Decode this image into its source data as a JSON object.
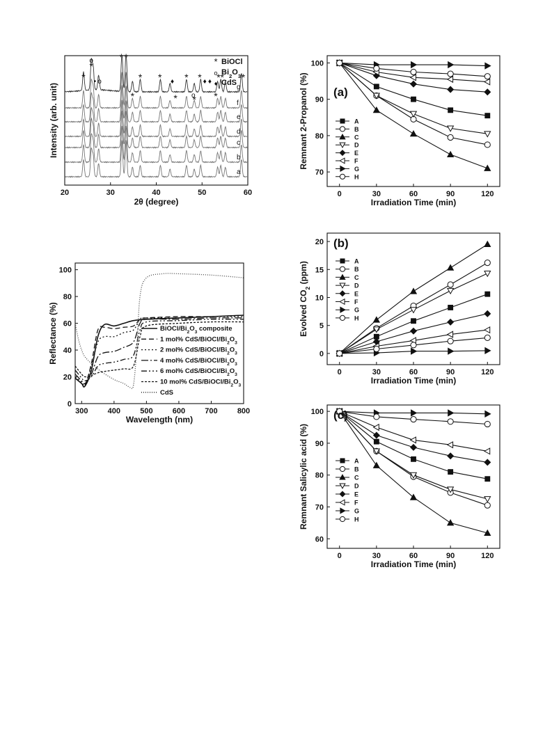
{
  "chart_data": [
    {
      "id": "xrd",
      "type": "line",
      "xlabel": "2θ (degree)",
      "ylabel": "Intensity (arb. unit)",
      "xlim": [
        20,
        60
      ],
      "xticks": [
        20,
        30,
        40,
        50,
        60
      ],
      "grid": false,
      "legend_position": "top-right",
      "legend": [
        {
          "symbol": "*",
          "label": "BiOCl"
        },
        {
          "symbol": "o",
          "label": "Bi2O3"
        },
        {
          "symbol": "♦",
          "label": "CdS"
        }
      ],
      "series": [
        {
          "name": "a"
        },
        {
          "name": "b"
        },
        {
          "name": "c"
        },
        {
          "name": "d"
        },
        {
          "name": "e"
        },
        {
          "name": "f"
        },
        {
          "name": "g"
        }
      ],
      "peaks": [
        {
          "x": 24.1,
          "h": 0.45
        },
        {
          "x": 25.8,
          "h": 0.7
        },
        {
          "x": 26.2,
          "h": 0.55
        },
        {
          "x": 27.4,
          "h": 0.35
        },
        {
          "x": 32.5,
          "h": 0.95
        },
        {
          "x": 33.4,
          "h": 0.95
        },
        {
          "x": 34.8,
          "h": 0.25
        },
        {
          "x": 36.5,
          "h": 0.3
        },
        {
          "x": 40.9,
          "h": 0.3
        },
        {
          "x": 43.0,
          "h": 0.2
        },
        {
          "x": 46.6,
          "h": 0.3
        },
        {
          "x": 48.3,
          "h": 0.2
        },
        {
          "x": 49.7,
          "h": 0.3
        },
        {
          "x": 53.4,
          "h": 0.25
        },
        {
          "x": 54.1,
          "h": 0.3
        },
        {
          "x": 55.1,
          "h": 0.25
        },
        {
          "x": 58.6,
          "h": 0.45
        }
      ],
      "markers": [
        {
          "x": 24.1,
          "s": "*"
        },
        {
          "x": 25.8,
          "s": "o"
        },
        {
          "x": 25.8,
          "s": "*"
        },
        {
          "x": 26.6,
          "s": "•"
        },
        {
          "x": 27.6,
          "s": "o"
        },
        {
          "x": 32.4,
          "s": "*"
        },
        {
          "x": 33.4,
          "s": "*"
        },
        {
          "x": 34.8,
          "s": "*"
        },
        {
          "x": 36.5,
          "s": "*"
        },
        {
          "x": 40.8,
          "s": "*"
        },
        {
          "x": 43.5,
          "s": "♦"
        },
        {
          "x": 44.2,
          "s": "*"
        },
        {
          "x": 46.6,
          "s": "*"
        },
        {
          "x": 48.1,
          "s": "o"
        },
        {
          "x": 48.3,
          "s": "*"
        },
        {
          "x": 49.5,
          "s": "*"
        },
        {
          "x": 50.6,
          "s": "♦"
        },
        {
          "x": 51.7,
          "s": "♦"
        },
        {
          "x": 53.0,
          "s": "*"
        },
        {
          "x": 53.6,
          "s": "*"
        },
        {
          "x": 54.4,
          "s": "*"
        },
        {
          "x": 59.0,
          "s": "*"
        }
      ]
    },
    {
      "id": "reflectance",
      "type": "line",
      "xlabel": "Wavelength (nm)",
      "ylabel": "Reflectance (%)",
      "xlim": [
        280,
        800
      ],
      "ylim": [
        0,
        105
      ],
      "xticks": [
        300,
        400,
        500,
        600,
        700,
        800
      ],
      "yticks": [
        0,
        20,
        40,
        60,
        80,
        100
      ],
      "grid": false,
      "legend_position": "right",
      "series": [
        {
          "name": "BiOCl/Bi2O3 composite",
          "dash": "",
          "x": [
            280,
            300,
            310,
            330,
            350,
            370,
            400,
            430,
            460,
            500,
            600,
            700,
            800
          ],
          "y": [
            19,
            15,
            13,
            25,
            50,
            59,
            58,
            60,
            62,
            63,
            64,
            65,
            66
          ]
        },
        {
          "name": "1 mol% CdS/BiOCl/Bi2O3",
          "dash": "7 4",
          "x": [
            280,
            300,
            310,
            330,
            350,
            370,
            400,
            430,
            460,
            480,
            500,
            600,
            700,
            800
          ],
          "y": [
            19,
            15,
            13,
            30,
            55,
            57,
            56,
            57,
            58,
            63,
            64,
            65,
            65,
            66
          ]
        },
        {
          "name": "2 mol% CdS/BiOCl/Bi2O3",
          "dash": "2 3",
          "x": [
            280,
            300,
            310,
            330,
            350,
            370,
            400,
            430,
            460,
            480,
            500,
            600,
            700,
            800
          ],
          "y": [
            20,
            16,
            14,
            28,
            46,
            50,
            50,
            53,
            55,
            63,
            64,
            64,
            65,
            65
          ]
        },
        {
          "name": "4 mol% CdS/BiOCl/Bi2O3",
          "dash": "10 3 2 3",
          "x": [
            280,
            300,
            310,
            330,
            350,
            370,
            400,
            430,
            460,
            480,
            500,
            600,
            700,
            800
          ],
          "y": [
            22,
            17,
            15,
            22,
            35,
            38,
            39,
            42,
            46,
            60,
            63,
            63,
            64,
            64
          ]
        },
        {
          "name": "6 mol% CdS/BiOCl/Bi2O3",
          "dash": "8 3 2 3 2 3",
          "x": [
            280,
            300,
            310,
            330,
            350,
            370,
            400,
            430,
            460,
            480,
            500,
            600,
            700,
            800
          ],
          "y": [
            25,
            19,
            17,
            20,
            28,
            30,
            31,
            33,
            36,
            55,
            61,
            62,
            63,
            63
          ]
        },
        {
          "name": "10 mol% CdS/BiOCl/Bi2O3",
          "dash": "3 2",
          "x": [
            280,
            300,
            310,
            330,
            350,
            370,
            400,
            430,
            460,
            480,
            500,
            600,
            700,
            800
          ],
          "y": [
            28,
            22,
            20,
            21,
            23,
            24,
            25,
            26,
            28,
            50,
            58,
            60,
            61,
            61
          ]
        },
        {
          "name": "CdS",
          "dash": "1 2",
          "x": [
            280,
            290,
            300,
            310,
            330,
            360,
            400,
            430,
            450,
            460,
            470,
            480,
            500,
            550,
            600,
            700,
            800
          ],
          "y": [
            60,
            48,
            40,
            35,
            30,
            24,
            18,
            15,
            12,
            14,
            40,
            80,
            94,
            97,
            97,
            96,
            94
          ]
        }
      ]
    },
    {
      "id": "a",
      "type": "line",
      "panel_label": "(a)",
      "xlabel": "Irradiation Time (min)",
      "ylabel": "Remnant 2-Propanol (%)",
      "xlim": [
        -10,
        130
      ],
      "ylim": [
        66,
        102
      ],
      "xticks": [
        0,
        30,
        60,
        90,
        120
      ],
      "yticks": [
        70,
        80,
        90,
        100
      ],
      "grid": false,
      "legend_position": "left",
      "x": [
        0,
        30,
        60,
        90,
        120
      ],
      "series": [
        {
          "name": "A",
          "marker": "square",
          "y": [
            100,
            93.5,
            90,
            87,
            85.5
          ]
        },
        {
          "name": "B",
          "marker": "circle",
          "y": [
            100,
            91,
            84.5,
            79.5,
            77.5
          ]
        },
        {
          "name": "C",
          "marker": "triangle-up",
          "y": [
            100,
            87,
            80.5,
            74.8,
            71
          ]
        },
        {
          "name": "D",
          "marker": "triangle-down",
          "y": [
            100,
            91,
            86,
            82,
            80.5
          ]
        },
        {
          "name": "E",
          "marker": "diamond",
          "y": [
            100,
            96.5,
            94.2,
            92.7,
            92
          ]
        },
        {
          "name": "F",
          "marker": "triangle-left",
          "y": [
            100,
            97.5,
            96,
            95.5,
            94.8
          ]
        },
        {
          "name": "G",
          "marker": "triangle-right",
          "y": [
            100,
            99.5,
            99.5,
            99.5,
            99.2
          ]
        },
        {
          "name": "H",
          "marker": "circle",
          "y": [
            100,
            98.5,
            97.5,
            97,
            96.3
          ]
        }
      ]
    },
    {
      "id": "b",
      "type": "line",
      "panel_label": "(b)",
      "xlabel": "Irradiation Time (min)",
      "ylabel": "Evolved CO2 (ppm)",
      "xlim": [
        -10,
        130
      ],
      "ylim": [
        -2,
        21.5
      ],
      "xticks": [
        0,
        30,
        60,
        90,
        120
      ],
      "yticks": [
        0,
        5,
        10,
        15,
        20
      ],
      "grid": false,
      "legend_position": "left",
      "x": [
        0,
        30,
        60,
        90,
        120
      ],
      "series": [
        {
          "name": "A",
          "marker": "square",
          "y": [
            0,
            3,
            5.8,
            8.2,
            10.6
          ]
        },
        {
          "name": "B",
          "marker": "circle",
          "y": [
            0,
            4.5,
            8.5,
            12.3,
            16.2
          ]
        },
        {
          "name": "C",
          "marker": "triangle-up",
          "y": [
            0,
            6,
            11.1,
            15.3,
            19.5
          ]
        },
        {
          "name": "D",
          "marker": "triangle-down",
          "y": [
            0,
            4.3,
            7.8,
            11.2,
            14.3
          ]
        },
        {
          "name": "E",
          "marker": "diamond",
          "y": [
            0,
            2.1,
            4,
            5.6,
            7.1
          ]
        },
        {
          "name": "F",
          "marker": "triangle-left",
          "y": [
            0,
            1.3,
            2.3,
            3.4,
            4.2
          ]
        },
        {
          "name": "G",
          "marker": "triangle-right",
          "y": [
            0,
            0.1,
            0.4,
            0.4,
            0.5
          ]
        },
        {
          "name": "H",
          "marker": "circle",
          "y": [
            0,
            0.8,
            1.5,
            2.2,
            2.8
          ]
        }
      ]
    },
    {
      "id": "c",
      "type": "line",
      "panel_label": "(c)",
      "xlabel": "Irradiation Time (min)",
      "ylabel": "Remnant Salicylic acid (%)",
      "xlim": [
        -10,
        130
      ],
      "ylim": [
        57,
        102
      ],
      "xticks": [
        0,
        30,
        60,
        90,
        120
      ],
      "yticks": [
        60,
        70,
        80,
        90,
        100
      ],
      "grid": false,
      "legend_position": "left",
      "x": [
        0,
        30,
        60,
        90,
        120
      ],
      "series": [
        {
          "name": "A",
          "marker": "square",
          "y": [
            100,
            90.5,
            85,
            81,
            78.8
          ]
        },
        {
          "name": "B",
          "marker": "circle",
          "y": [
            100,
            87.5,
            79.5,
            74.5,
            70.5
          ]
        },
        {
          "name": "C",
          "marker": "triangle-up",
          "y": [
            100,
            83,
            73,
            65,
            61.8
          ]
        },
        {
          "name": "D",
          "marker": "triangle-down",
          "y": [
            100,
            87.5,
            80,
            75.5,
            72.5
          ]
        },
        {
          "name": "E",
          "marker": "diamond",
          "y": [
            100,
            92.5,
            88.7,
            86,
            84
          ]
        },
        {
          "name": "F",
          "marker": "triangle-left",
          "y": [
            100,
            95,
            91,
            89.5,
            87.5
          ]
        },
        {
          "name": "G",
          "marker": "triangle-right",
          "y": [
            100,
            99.5,
            99.5,
            99.5,
            99.2
          ]
        },
        {
          "name": "H",
          "marker": "circle",
          "y": [
            100,
            98.3,
            97.5,
            96.8,
            96
          ]
        }
      ]
    }
  ]
}
